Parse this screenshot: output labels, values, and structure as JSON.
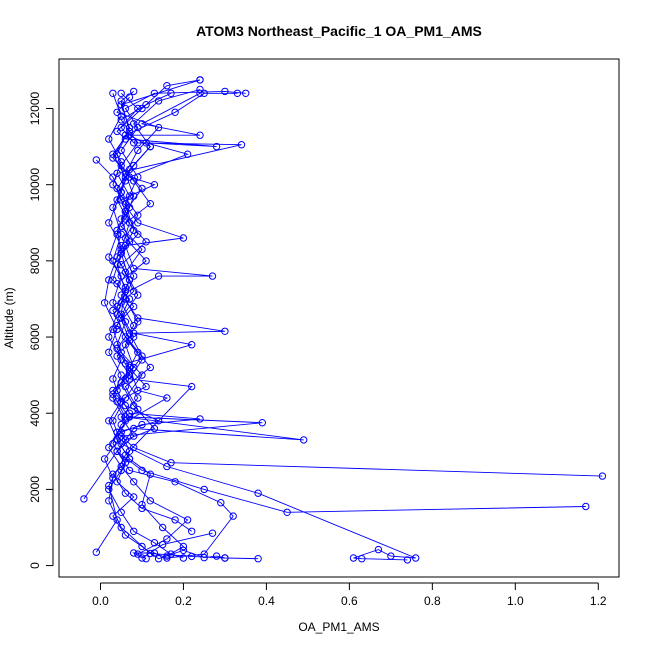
{
  "chart_data": {
    "type": "line",
    "title": "ATOM3 Northeast_Pacific_1 OA_PM1_AMS",
    "xlabel": "OA_PM1_AMS",
    "ylabel": "Altitude (m)",
    "xlim": [
      -0.1,
      1.25
    ],
    "ylim": [
      -300,
      13300
    ],
    "x_ticks": [
      "0.0",
      "0.2",
      "0.4",
      "0.6",
      "0.8",
      "1.0",
      "1.2"
    ],
    "x_tick_values": [
      0,
      0.2,
      0.4,
      0.6,
      0.8,
      1.0,
      1.2
    ],
    "y_ticks": [
      "0",
      "2000",
      "4000",
      "6000",
      "8000",
      "10000",
      "12000"
    ],
    "y_tick_values": [
      0,
      2000,
      4000,
      6000,
      8000,
      10000,
      12000
    ],
    "grid": false,
    "line_color": "#0000ff",
    "marker": "open-circle",
    "series": [
      {
        "points": [
          [
            0.74,
            150
          ],
          [
            0.63,
            180
          ],
          [
            0.61,
            200
          ],
          [
            0.67,
            420
          ],
          [
            0.7,
            250
          ],
          [
            0.76,
            200
          ],
          [
            0.38,
            1900
          ],
          [
            0.16,
            2600
          ],
          [
            0.05,
            3200
          ],
          [
            0.03,
            3800
          ],
          [
            0.06,
            4400
          ],
          [
            0.1,
            5000
          ],
          [
            0.05,
            5600
          ],
          [
            0.03,
            6200
          ],
          [
            0.08,
            6800
          ],
          [
            0.04,
            7400
          ],
          [
            0.11,
            8000
          ],
          [
            0.06,
            8600
          ],
          [
            0.09,
            9200
          ],
          [
            0.05,
            9800
          ],
          [
            0.07,
            10400
          ],
          [
            0.12,
            11000
          ],
          [
            0.08,
            11600
          ],
          [
            0.14,
            12200
          ],
          [
            0.24,
            12500
          ]
        ]
      },
      {
        "points": [
          [
            1.21,
            2350
          ],
          [
            0.17,
            2700
          ],
          [
            0.08,
            3100
          ],
          [
            0.04,
            3500
          ],
          [
            0.09,
            4100
          ],
          [
            0.06,
            4700
          ],
          [
            0.12,
            5200
          ],
          [
            0.07,
            5900
          ],
          [
            0.05,
            6500
          ],
          [
            0.09,
            7100
          ],
          [
            0.06,
            7700
          ],
          [
            0.1,
            8300
          ],
          [
            0.05,
            8900
          ],
          [
            0.12,
            9500
          ],
          [
            0.08,
            10100
          ],
          [
            0.03,
            10700
          ],
          [
            0.06,
            11300
          ],
          [
            0.18,
            11900
          ],
          [
            0.25,
            12400
          ],
          [
            0.33,
            12400
          ]
        ]
      },
      {
        "points": [
          [
            1.17,
            1550
          ],
          [
            0.45,
            1400
          ],
          [
            0.25,
            2000
          ],
          [
            0.1,
            2500
          ],
          [
            0.04,
            3000
          ],
          [
            0.08,
            3600
          ],
          [
            0.49,
            3300
          ],
          [
            0.06,
            3900
          ],
          [
            0.03,
            4500
          ],
          [
            0.07,
            5100
          ],
          [
            0.04,
            5700
          ],
          [
            0.08,
            6300
          ],
          [
            0.05,
            6900
          ],
          [
            0.07,
            7500
          ],
          [
            0.04,
            8100
          ],
          [
            0.09,
            8700
          ],
          [
            0.06,
            9300
          ],
          [
            0.1,
            9900
          ],
          [
            0.05,
            10500
          ],
          [
            0.09,
            11100
          ],
          [
            0.05,
            11700
          ],
          [
            0.11,
            12100
          ],
          [
            0.17,
            12400
          ]
        ]
      },
      {
        "points": [
          [
            0.38,
            180
          ],
          [
            0.3,
            200
          ],
          [
            0.22,
            240
          ],
          [
            0.12,
            320
          ],
          [
            0.05,
            1000
          ],
          [
            0.02,
            1700
          ],
          [
            0.03,
            2300
          ],
          [
            0.01,
            2800
          ],
          [
            0.05,
            3400
          ],
          [
            0.39,
            3750
          ],
          [
            0.07,
            3900
          ],
          [
            0.04,
            4300
          ],
          [
            0.11,
            4700
          ],
          [
            0.06,
            5300
          ],
          [
            0.22,
            5800
          ],
          [
            0.08,
            6100
          ],
          [
            0.3,
            6150
          ],
          [
            0.09,
            6500
          ],
          [
            0.05,
            7100
          ],
          [
            0.14,
            7600
          ],
          [
            0.27,
            7600
          ],
          [
            0.08,
            7800
          ],
          [
            0.06,
            8400
          ],
          [
            0.2,
            8600
          ],
          [
            0.09,
            9000
          ],
          [
            0.05,
            9600
          ],
          [
            0.13,
            10000
          ],
          [
            0.07,
            10200
          ],
          [
            0.21,
            10800
          ],
          [
            0.11,
            11100
          ],
          [
            0.28,
            11000
          ],
          [
            0.06,
            11200
          ],
          [
            0.04,
            11400
          ],
          [
            0.09,
            12000
          ],
          [
            0.05,
            12400
          ]
        ]
      },
      {
        "points": [
          [
            -0.01,
            350
          ],
          [
            0.04,
            1200
          ],
          [
            0.02,
            2100
          ],
          [
            0.06,
            2900
          ],
          [
            0.22,
            4700
          ],
          [
            0.07,
            4900
          ],
          [
            0.1,
            5400
          ],
          [
            0.06,
            6000
          ],
          [
            0.03,
            6700
          ],
          [
            0.08,
            7200
          ],
          [
            0.05,
            7900
          ],
          [
            0.11,
            8500
          ],
          [
            0.06,
            9100
          ],
          [
            0.08,
            9700
          ],
          [
            0.06,
            10300
          ],
          [
            0.09,
            10900
          ],
          [
            0.14,
            11500
          ],
          [
            0.04,
            11900
          ],
          [
            0.07,
            12300
          ]
        ]
      },
      {
        "points": [
          [
            -0.04,
            1750
          ],
          [
            0.04,
            3000
          ],
          [
            0.06,
            3300
          ],
          [
            0.13,
            3600
          ],
          [
            0.08,
            4200
          ],
          [
            0.05,
            4800
          ],
          [
            0.09,
            5600
          ],
          [
            0.04,
            6300
          ],
          [
            0.07,
            7000
          ],
          [
            0.03,
            7500
          ],
          [
            0.05,
            8200
          ],
          [
            0.04,
            8800
          ],
          [
            0.07,
            9400
          ],
          [
            0.03,
            10000
          ],
          [
            0.05,
            10600
          ],
          [
            0.02,
            11200
          ],
          [
            0.05,
            11800
          ],
          [
            0.03,
            12400
          ]
        ]
      },
      {
        "points": [
          [
            0.3,
            200
          ],
          [
            0.28,
            250
          ],
          [
            0.25,
            210
          ],
          [
            0.2,
            400
          ],
          [
            0.14,
            180
          ],
          [
            0.1,
            500
          ],
          [
            0.06,
            800
          ],
          [
            0.03,
            1300
          ],
          [
            0.08,
            1800
          ],
          [
            0.04,
            2200
          ],
          [
            0.06,
            2700
          ],
          [
            0.03,
            3200
          ],
          [
            0.05,
            3700
          ],
          [
            0.16,
            4400
          ],
          [
            0.09,
            4600
          ],
          [
            0.07,
            5200
          ],
          [
            0.04,
            5800
          ],
          [
            0.06,
            6400
          ],
          [
            0.03,
            6900
          ],
          [
            0.05,
            7600
          ],
          [
            0.02,
            8100
          ],
          [
            0.04,
            8700
          ],
          [
            0.06,
            9300
          ],
          [
            0.04,
            9900
          ],
          [
            0.08,
            10500
          ],
          [
            0.12,
            11000
          ],
          [
            0.07,
            11300
          ],
          [
            0.24,
            11300
          ],
          [
            0.1,
            11600
          ],
          [
            0.24,
            12400
          ]
        ]
      },
      {
        "points": [
          [
            0.11,
            180
          ],
          [
            0.09,
            300
          ],
          [
            0.16,
            700
          ],
          [
            0.21,
            1200
          ],
          [
            0.12,
            1700
          ],
          [
            0.08,
            2200
          ],
          [
            0.05,
            2600
          ],
          [
            0.02,
            3100
          ],
          [
            0.04,
            3500
          ],
          [
            0.14,
            3800
          ],
          [
            0.06,
            4200
          ],
          [
            0.03,
            4600
          ],
          [
            0.07,
            5000
          ],
          [
            0.04,
            5500
          ],
          [
            0.08,
            6000
          ],
          [
            0.05,
            6600
          ],
          [
            0.06,
            7300
          ],
          [
            0.03,
            8000
          ],
          [
            0.05,
            8700
          ],
          [
            0.03,
            9400
          ],
          [
            0.06,
            10100
          ],
          [
            0.04,
            10800
          ],
          [
            0.07,
            11500
          ],
          [
            0.05,
            12100
          ],
          [
            0.24,
            12750
          ]
        ]
      },
      {
        "points": [
          [
            0.22,
            900
          ],
          [
            0.18,
            1200
          ],
          [
            0.1,
            1500
          ],
          [
            0.06,
            1900
          ],
          [
            0.03,
            2400
          ],
          [
            0.07,
            2800
          ],
          [
            0.04,
            3300
          ],
          [
            0.02,
            3800
          ],
          [
            0.05,
            4300
          ],
          [
            0.03,
            4900
          ],
          [
            0.05,
            5400
          ],
          [
            0.02,
            6000
          ],
          [
            0.04,
            6600
          ],
          [
            0.06,
            7200
          ],
          [
            0.04,
            7900
          ],
          [
            0.07,
            8500
          ],
          [
            0.05,
            9100
          ],
          [
            0.07,
            9700
          ],
          [
            0.04,
            10300
          ],
          [
            0.34,
            11050
          ],
          [
            0.08,
            11100
          ],
          [
            0.05,
            11500
          ],
          [
            0.1,
            12000
          ],
          [
            0.16,
            12600
          ],
          [
            0.24,
            12750
          ]
        ]
      },
      {
        "points": [
          [
            0.27,
            850
          ],
          [
            0.15,
            550
          ],
          [
            0.1,
            200
          ],
          [
            0.08,
            330
          ],
          [
            0.13,
            330
          ],
          [
            0.16,
            200
          ],
          [
            0.25,
            300
          ],
          [
            0.32,
            1300
          ],
          [
            0.29,
            1650
          ],
          [
            0.18,
            2200
          ],
          [
            0.07,
            2500
          ],
          [
            0.04,
            3000
          ],
          [
            0.08,
            3400
          ],
          [
            0.05,
            3900
          ],
          [
            0.09,
            4400
          ],
          [
            0.06,
            4900
          ],
          [
            0.1,
            5500
          ],
          [
            0.07,
            6100
          ],
          [
            0.04,
            6800
          ],
          [
            0.07,
            7500
          ],
          [
            0.05,
            8200
          ],
          [
            0.08,
            8800
          ],
          [
            0.06,
            9500
          ],
          [
            0.09,
            10200
          ],
          [
            0.05,
            10900
          ],
          [
            0.09,
            11500
          ],
          [
            0.06,
            12000
          ],
          [
            0.13,
            12400
          ],
          [
            0.3,
            12450
          ],
          [
            0.35,
            12400
          ]
        ]
      },
      {
        "points": [
          [
            0.2,
            200
          ],
          [
            0.17,
            300
          ],
          [
            0.13,
            600
          ],
          [
            0.08,
            900
          ],
          [
            0.05,
            1400
          ],
          [
            0.02,
            2000
          ],
          [
            0.05,
            2500
          ],
          [
            0.07,
            3000
          ],
          [
            0.05,
            3500
          ],
          [
            0.1,
            3700
          ],
          [
            0.24,
            3850
          ],
          [
            0.07,
            4000
          ],
          [
            0.04,
            4600
          ],
          [
            0.08,
            5200
          ],
          [
            0.06,
            5800
          ],
          [
            0.09,
            6400
          ],
          [
            0.06,
            7000
          ],
          [
            0.08,
            7600
          ],
          [
            0.05,
            8300
          ],
          [
            0.07,
            9000
          ],
          [
            0.04,
            9600
          ],
          [
            0.06,
            10200
          ],
          [
            0.03,
            10800
          ],
          [
            0.07,
            11400
          ],
          [
            0.05,
            12200
          ],
          [
            0.08,
            12450
          ]
        ]
      },
      {
        "points": [
          [
            -0.01,
            10650
          ],
          [
            0.03,
            10200
          ],
          [
            0.05,
            9800
          ],
          [
            0.02,
            9000
          ],
          [
            0.05,
            8400
          ],
          [
            0.02,
            7500
          ],
          [
            0.01,
            6900
          ],
          [
            0.04,
            6200
          ],
          [
            0.02,
            5600
          ],
          [
            0.05,
            5000
          ],
          [
            0.03,
            4400
          ],
          [
            0.06,
            3800
          ],
          [
            0.04,
            3300
          ],
          [
            0.07,
            2800
          ],
          [
            0.12,
            2400
          ],
          [
            0.1,
            1600
          ],
          [
            0.15,
            1000
          ],
          [
            0.2,
            500
          ],
          [
            0.16,
            250
          ]
        ]
      }
    ]
  }
}
